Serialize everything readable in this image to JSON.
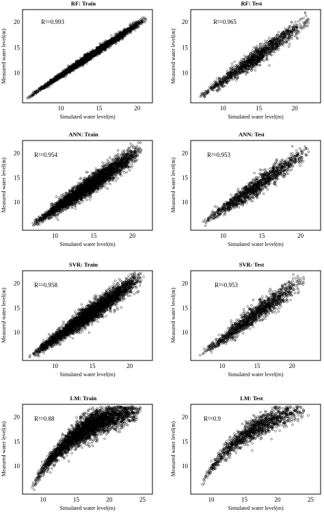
{
  "chart_data": [
    {
      "type": "scatter",
      "title": "RF: Train",
      "annotation": "R²=0.993",
      "r2": 0.993,
      "xlabel": "Simulated water level(m)",
      "ylabel": "Measured water level(m)",
      "xlim": [
        6,
        23
      ],
      "ylim": [
        5.3,
        23.6
      ],
      "xticks": [
        10,
        15,
        20
      ],
      "yticks": [
        10,
        15,
        20
      ],
      "trend": {
        "x0": 6.5,
        "x1": 22.3,
        "x_min": 6.5,
        "x_max": 22.3,
        "spread": 0.35
      },
      "point_count": 2600,
      "marker": "open-circle"
    },
    {
      "type": "scatter",
      "title": "RF: Test",
      "annotation": "R²=0.965",
      "r2": 0.965,
      "xlabel": "Simulated water level(m)",
      "ylabel": "Measured water level(m)",
      "xlim": [
        5.5,
        23.6
      ],
      "ylim": [
        5.3,
        23.6
      ],
      "xticks": [
        10,
        15,
        20
      ],
      "yticks": [
        10,
        15,
        20
      ],
      "trend": {
        "x0": 6.5,
        "x1": 22.3,
        "x_min": 6.5,
        "x_max": 22.3,
        "spread": 0.85
      },
      "point_count": 1300,
      "marker": "open-circle"
    },
    {
      "type": "scatter",
      "title": "ANN: Train",
      "annotation": "R²=0.954",
      "r2": 0.954,
      "xlabel": "Simulated water level(m)",
      "ylabel": "Measured water level(m)",
      "xlim": [
        5.8,
        22.6
      ],
      "ylim": [
        5.3,
        23.6
      ],
      "xticks": [
        10,
        15,
        20
      ],
      "yticks": [
        10,
        15,
        20
      ],
      "trend": {
        "x0": 6.8,
        "x1": 21.4,
        "x_min": 6.8,
        "x_max": 21.3,
        "spread": 0.95
      },
      "point_count": 3400,
      "marker": "open-circle"
    },
    {
      "type": "scatter",
      "title": "ANN: Test",
      "annotation": "R²=0.953",
      "r2": 0.953,
      "xlabel": "Simulated water level(m)",
      "ylabel": "Measured water level(m)",
      "xlim": [
        5.8,
        22.6
      ],
      "ylim": [
        5.3,
        23.6
      ],
      "xticks": [
        10,
        15,
        20
      ],
      "yticks": [
        10,
        15,
        20
      ],
      "trend": {
        "x0": 6.8,
        "x1": 21.4,
        "x_min": 6.8,
        "x_max": 21.3,
        "spread": 0.95
      },
      "point_count": 1300,
      "marker": "open-circle"
    },
    {
      "type": "scatter",
      "title": "SVR: Train",
      "annotation": "R²=0.958",
      "r2": 0.958,
      "xlabel": "Simulated water level(m)",
      "ylabel": "Measured water level(m)",
      "xlim": [
        5.8,
        23.2
      ],
      "ylim": [
        5.3,
        23.6
      ],
      "xticks": [
        10,
        15,
        20
      ],
      "yticks": [
        10,
        15,
        20
      ],
      "trend": {
        "x0": 6.8,
        "x1": 21.4,
        "x_min": 6.6,
        "x_max": 22.2,
        "spread": 0.95
      },
      "point_count": 3400,
      "marker": "open-circle"
    },
    {
      "type": "scatter",
      "title": "SVR: Test",
      "annotation": "R²=0.953",
      "r2": 0.953,
      "xlabel": "Simulated water level(m)",
      "ylabel": "Measured water level(m)",
      "xlim": [
        5.5,
        24.1
      ],
      "ylim": [
        5.3,
        23.6
      ],
      "xticks": [
        10,
        15,
        20
      ],
      "yticks": [
        10,
        15,
        20
      ],
      "trend": {
        "x0": 6.6,
        "x1": 21.8,
        "x_min": 6.6,
        "x_max": 22.0,
        "spread": 0.95
      },
      "point_count": 1300,
      "marker": "open-circle"
    },
    {
      "type": "scatter",
      "title": "LM: Train",
      "annotation": "R²=0.88",
      "r2": 0.88,
      "xlabel": "Simulated water level(m)",
      "ylabel": "Measured water level(m)",
      "xlim": [
        6.8,
        26.4
      ],
      "ylim": [
        5.3,
        23.6
      ],
      "xticks": [
        10,
        15,
        20,
        25
      ],
      "yticks": [
        10,
        15,
        20
      ],
      "trend": {
        "x0": 8,
        "x1": 25,
        "x_min": 8.0,
        "x_max": 25.0,
        "spread": 1.3,
        "curved": true
      },
      "point_count": 3400,
      "marker": "open-circle"
    },
    {
      "type": "scatter",
      "title": "LM: Test",
      "annotation": "R²=0.9",
      "r2": 0.9,
      "xlabel": "Simulated water level(m)",
      "ylabel": "Measured water level(m)",
      "xlim": [
        6.8,
        26.4
      ],
      "ylim": [
        5.3,
        23.6
      ],
      "xticks": [
        10,
        15,
        20,
        25
      ],
      "yticks": [
        10,
        15,
        20
      ],
      "trend": {
        "x0": 8,
        "x1": 25,
        "x_min": 8.0,
        "x_max": 24.6,
        "spread": 1.1,
        "curved": true
      },
      "point_count": 1300,
      "marker": "open-circle"
    }
  ]
}
